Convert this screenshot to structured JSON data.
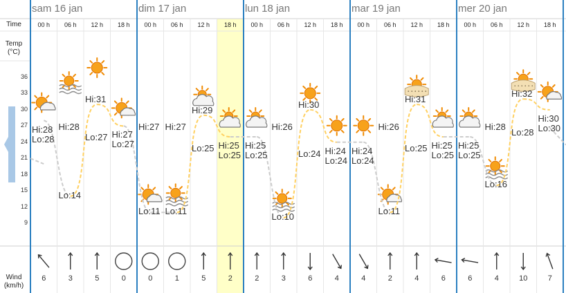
{
  "labels": {
    "time": "Time",
    "temp_line1": "Temp",
    "temp_line2": "(°C)",
    "wind_line1": "Wind",
    "wind_line2": "(km/h)"
  },
  "y_ticks": [
    "36",
    "33",
    "30",
    "27",
    "24",
    "21",
    "18",
    "15",
    "12",
    "9"
  ],
  "days": [
    {
      "label": "sam 16 jan"
    },
    {
      "label": "dim 17 jan"
    },
    {
      "label": "lun 18 jan"
    },
    {
      "label": "mar 19 jan"
    },
    {
      "label": "mer 20 jan"
    }
  ],
  "highlight_slot": 7,
  "slots": [
    {
      "hour": "00 h",
      "icon": "sun-cloud-icon",
      "temp": 28,
      "wind_speed": "6",
      "wind_dir": 140
    },
    {
      "hour": "06 h",
      "icon": "sun-haze-icon",
      "temp": 14,
      "wind_speed": "3",
      "wind_dir": 180
    },
    {
      "hour": "12 h",
      "icon": "sun-icon",
      "temp": 31,
      "wind_speed": "5",
      "wind_dir": 180
    },
    {
      "hour": "18 h",
      "icon": "sun-cloud-icon",
      "temp": 27,
      "wind_speed": "0",
      "wind_dir": null
    },
    {
      "hour": "00 h",
      "icon": "sun-cloud-icon",
      "temp": 11,
      "wind_speed": "0",
      "wind_dir": null
    },
    {
      "hour": "06 h",
      "icon": "sun-haze-icon",
      "temp": 11,
      "wind_speed": "1",
      "wind_dir": null
    },
    {
      "hour": "12 h",
      "icon": "cloud-sun-icon",
      "temp": 29,
      "wind_speed": "5",
      "wind_dir": 180
    },
    {
      "hour": "18 h",
      "icon": "cloud-sun-icon",
      "temp": 25,
      "wind_speed": "2",
      "wind_dir": 180
    },
    {
      "hour": "00 h",
      "icon": "cloud-sun-icon",
      "temp": 25,
      "wind_speed": "2",
      "wind_dir": 180
    },
    {
      "hour": "06 h",
      "icon": "sun-haze-icon",
      "temp": 10,
      "wind_speed": "3",
      "wind_dir": 180
    },
    {
      "hour": "12 h",
      "icon": "sun-icon",
      "temp": 30,
      "wind_speed": "6",
      "wind_dir": 0
    },
    {
      "hour": "18 h",
      "icon": "sun-icon",
      "temp": 24,
      "wind_speed": "4",
      "wind_dir": 330
    },
    {
      "hour": "00 h",
      "icon": "sun-icon",
      "temp": 24,
      "wind_speed": "4",
      "wind_dir": 330
    },
    {
      "hour": "06 h",
      "icon": "sun-cloud-icon",
      "temp": 11,
      "wind_speed": "2",
      "wind_dir": 180
    },
    {
      "hour": "12 h",
      "icon": "sun-fog-icon",
      "temp": 31,
      "wind_speed": "4",
      "wind_dir": 180
    },
    {
      "hour": "18 h",
      "icon": "cloud-sun-icon",
      "temp": 25,
      "wind_speed": "6",
      "wind_dir": 100
    },
    {
      "hour": "00 h",
      "icon": "cloud-sun-icon",
      "temp": 25,
      "wind_speed": "6",
      "wind_dir": 100
    },
    {
      "hour": "06 h",
      "icon": "sun-haze-icon",
      "temp": 16,
      "wind_speed": "4",
      "wind_dir": 180
    },
    {
      "hour": "12 h",
      "icon": "sun-fog-icon",
      "temp": 32,
      "wind_speed": "10",
      "wind_dir": 0
    },
    {
      "hour": "18 h",
      "icon": "sun-cloud-icon",
      "temp": 30,
      "wind_speed": "7",
      "wind_dir": 160
    }
  ],
  "hi_lo_labels": [
    {
      "text_hi": "Hi:28",
      "text_lo": "Lo:28",
      "slot": 0,
      "temp": 28,
      "placement": "block"
    },
    {
      "text_lo": "Lo:14",
      "slot": 1,
      "temp": 14,
      "placement": "lo"
    },
    {
      "text_hi": "Hi:28",
      "slot": 1,
      "temp": 28,
      "placement": "hi-only"
    },
    {
      "text_hi": "Hi:31",
      "slot": 2,
      "temp": 31,
      "placement": "hi"
    },
    {
      "text_lo": "Lo:27",
      "slot": 2,
      "temp": 27,
      "placement": "lo-only"
    },
    {
      "text_hi": "Hi:27",
      "text_lo": "Lo:27",
      "slot": 3,
      "temp": 27,
      "placement": "block"
    },
    {
      "text_hi": "Hi:27",
      "slot": 4,
      "temp": 27,
      "placement": "hi-only"
    },
    {
      "text_lo": "Lo:11",
      "slot": 4,
      "temp": 11,
      "placement": "lo"
    },
    {
      "text_hi": "Hi:27",
      "slot": 5,
      "temp": 27,
      "placement": "hi-only"
    },
    {
      "text_lo": "Lo:11",
      "slot": 5,
      "temp": 11,
      "placement": "lo"
    },
    {
      "text_hi": "Hi:29",
      "slot": 6,
      "temp": 29,
      "placement": "hi"
    },
    {
      "text_lo": "Lo:25",
      "slot": 6,
      "temp": 25,
      "placement": "lo-only"
    },
    {
      "text_hi": "Hi:25",
      "text_lo": "Lo:25",
      "slot": 7,
      "temp": 25,
      "placement": "block"
    },
    {
      "text_hi": "Hi:25",
      "text_lo": "Lo:25",
      "slot": 8,
      "temp": 25,
      "placement": "block"
    },
    {
      "text_hi": "Hi:26",
      "slot": 9,
      "temp": 26,
      "placement": "hi-only"
    },
    {
      "text_lo": "Lo:10",
      "slot": 9,
      "temp": 10,
      "placement": "lo"
    },
    {
      "text_hi": "Hi:30",
      "slot": 10,
      "temp": 30,
      "placement": "hi"
    },
    {
      "text_lo": "Lo:24",
      "slot": 10,
      "temp": 24,
      "placement": "lo-only"
    },
    {
      "text_hi": "Hi:24",
      "text_lo": "Lo:24",
      "slot": 11,
      "temp": 24,
      "placement": "block"
    },
    {
      "text_hi": "Hi:24",
      "text_lo": "Lo:24",
      "slot": 12,
      "temp": 24,
      "placement": "block"
    },
    {
      "text_hi": "Hi:26",
      "slot": 13,
      "temp": 26,
      "placement": "hi-only"
    },
    {
      "text_lo": "Lo:11",
      "slot": 13,
      "temp": 11,
      "placement": "lo"
    },
    {
      "text_hi": "Hi:31",
      "slot": 14,
      "temp": 31,
      "placement": "hi"
    },
    {
      "text_lo": "Lo:25",
      "slot": 14,
      "temp": 25,
      "placement": "lo-only"
    },
    {
      "text_hi": "Hi:25",
      "text_lo": "Lo:25",
      "slot": 15,
      "temp": 25,
      "placement": "block"
    },
    {
      "text_hi": "Hi:25",
      "text_lo": "Lo:25",
      "slot": 16,
      "temp": 25,
      "placement": "block"
    },
    {
      "text_hi": "Hi:28",
      "slot": 17,
      "temp": 28,
      "placement": "hi-only"
    },
    {
      "text_lo": "Lo:16",
      "slot": 17,
      "temp": 16,
      "placement": "lo"
    },
    {
      "text_hi": "Hi:32",
      "slot": 18,
      "temp": 32,
      "placement": "hi"
    },
    {
      "text_lo": "Lo:28",
      "slot": 18,
      "temp": 28,
      "placement": "lo-only"
    },
    {
      "text_hi": "Hi:30",
      "text_lo": "Lo:30",
      "slot": 19,
      "temp": 30,
      "placement": "block"
    }
  ],
  "colors": {
    "day_divider": "#2a7fc0",
    "grid": "#e6e6e6",
    "highlight": "#ffffc8",
    "day_line": "#ffd060",
    "night_line": "#cccccc",
    "nav_arrow": "#a9c8e6"
  },
  "chart_data": {
    "type": "line",
    "x": [
      "00 h",
      "06 h",
      "12 h",
      "18 h",
      "00 h",
      "06 h",
      "12 h",
      "18 h",
      "00 h",
      "06 h",
      "12 h",
      "18 h",
      "00 h",
      "06 h",
      "12 h",
      "18 h",
      "00 h",
      "06 h",
      "12 h",
      "18 h"
    ],
    "series": [
      {
        "values": [
          28,
          14,
          31,
          27,
          11,
          11,
          29,
          25,
          25,
          10,
          30,
          24,
          24,
          11,
          31,
          25,
          25,
          16,
          32,
          30
        ]
      }
    ],
    "ylabel": "Temp (°C)",
    "ylim": [
      6,
      39
    ],
    "y_ticks": [
      36,
      33,
      30,
      27,
      24,
      21,
      18,
      15,
      12,
      9
    ]
  }
}
